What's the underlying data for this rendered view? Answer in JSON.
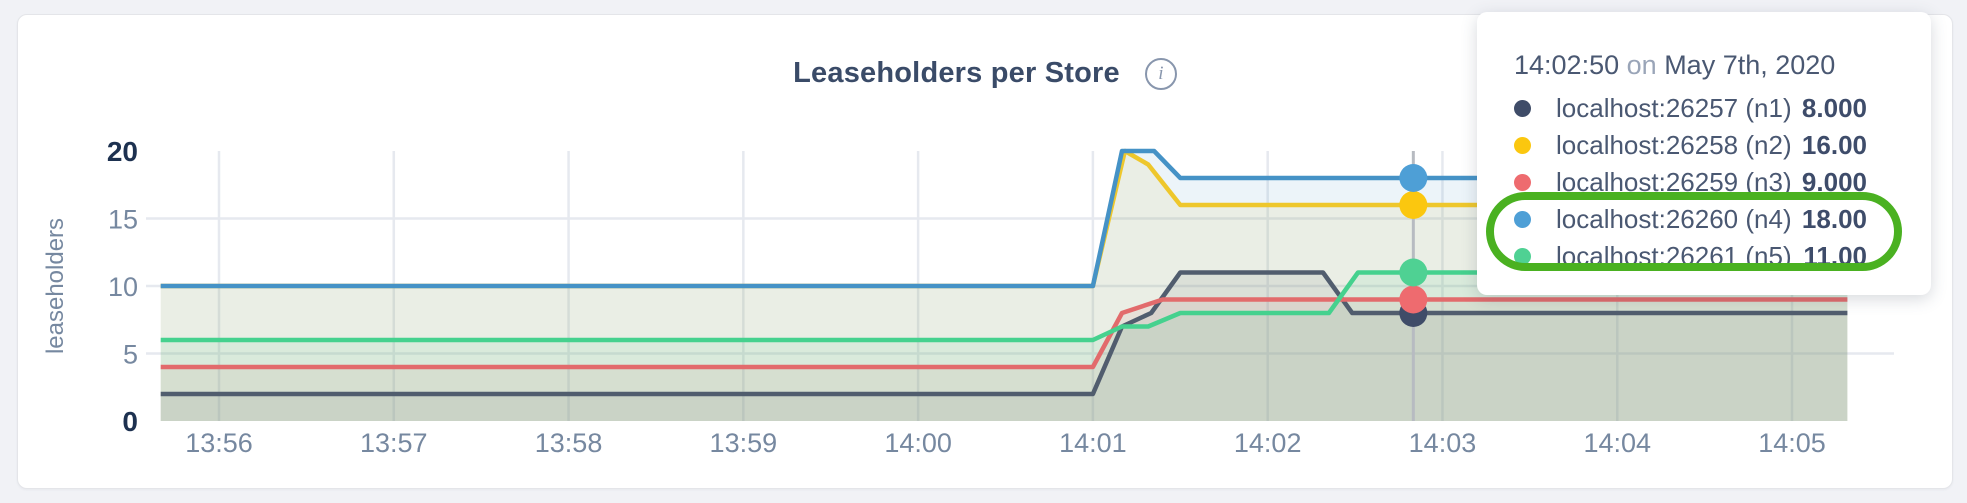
{
  "page": {
    "background": "#f1f2f6"
  },
  "card": {
    "title": "Leaseholders per Store",
    "info_icon_glyph": "i"
  },
  "chart_data": {
    "type": "area",
    "title": "Leaseholders per Store",
    "xlabel": "",
    "ylabel": "leaseholders",
    "ylim": [
      0,
      20
    ],
    "yticks": [
      0,
      5,
      10,
      15,
      20
    ],
    "ytick_bold": [
      0,
      20
    ],
    "xticks": [
      "13:56",
      "13:57",
      "13:58",
      "13:59",
      "14:00",
      "14:01",
      "14:02",
      "14:03",
      "14:04",
      "14:05"
    ],
    "x_start": "13:55:40",
    "x_end": "14:05:19",
    "grid": true,
    "hover_time": "14:02:50",
    "series": [
      {
        "name": "localhost:26257 (n1)",
        "color": "#515d6e",
        "dot_color": "#3f4c68",
        "hover_value": 8,
        "points": [
          [
            "13:55:40",
            2
          ],
          [
            "14:01:00",
            2
          ],
          [
            "14:01:10",
            7
          ],
          [
            "14:01:20",
            8
          ],
          [
            "14:01:30",
            11
          ],
          [
            "14:02:19",
            11
          ],
          [
            "14:02:29",
            8
          ],
          [
            "14:05:19",
            8
          ]
        ]
      },
      {
        "name": "localhost:26258 (n2)",
        "color": "#eec72c",
        "dot_color": "#fbc70f",
        "hover_value": 16,
        "points": [
          [
            "13:55:40",
            10
          ],
          [
            "14:01:00",
            10
          ],
          [
            "14:01:11",
            20
          ],
          [
            "14:01:19",
            19
          ],
          [
            "14:01:30",
            16
          ],
          [
            "14:05:19",
            16
          ]
        ]
      },
      {
        "name": "localhost:26259 (n3)",
        "color": "#e26b6c",
        "dot_color": "#ee6b6f",
        "hover_value": 9,
        "points": [
          [
            "13:55:40",
            4
          ],
          [
            "14:01:00",
            4
          ],
          [
            "14:01:10",
            8
          ],
          [
            "14:01:24",
            9
          ],
          [
            "14:05:19",
            9
          ]
        ]
      },
      {
        "name": "localhost:26260 (n4)",
        "color": "#4592c6",
        "dot_color": "#4e9fd6",
        "hover_value": 18,
        "points": [
          [
            "13:55:40",
            10
          ],
          [
            "14:01:00",
            10
          ],
          [
            "14:01:10",
            20
          ],
          [
            "14:01:21",
            20
          ],
          [
            "14:01:30",
            18
          ],
          [
            "14:05:19",
            18
          ]
        ]
      },
      {
        "name": "localhost:26261 (n5)",
        "color": "#45d18e",
        "dot_color": "#4fd193",
        "hover_value": 11,
        "points": [
          [
            "13:55:40",
            6
          ],
          [
            "14:01:00",
            6
          ],
          [
            "14:01:10",
            7
          ],
          [
            "14:01:19",
            7
          ],
          [
            "14:01:30",
            8
          ],
          [
            "14:02:21",
            8
          ],
          [
            "14:02:31",
            11
          ],
          [
            "14:05:19",
            11
          ]
        ]
      }
    ]
  },
  "tooltip": {
    "time": "14:02:50",
    "on_word": "on",
    "date": "May 7th, 2020",
    "rows": [
      {
        "label": "localhost:26257 (n1)",
        "value": "8.000",
        "dot_color": "#3f4c68"
      },
      {
        "label": "localhost:26258 (n2)",
        "value": "16.00",
        "dot_color": "#fbc70f"
      },
      {
        "label": "localhost:26259 (n3)",
        "value": "9.000",
        "dot_color": "#ee6b6f"
      },
      {
        "label": "localhost:26260 (n4)",
        "value": "18.00",
        "dot_color": "#4e9fd6"
      },
      {
        "label": "localhost:26261 (n5)",
        "value": "11.00",
        "dot_color": "#4fd193"
      }
    ],
    "highlighted_rows": [
      3,
      4
    ]
  },
  "annotation": {
    "shape": "ellipse",
    "color": "#4ab121"
  }
}
